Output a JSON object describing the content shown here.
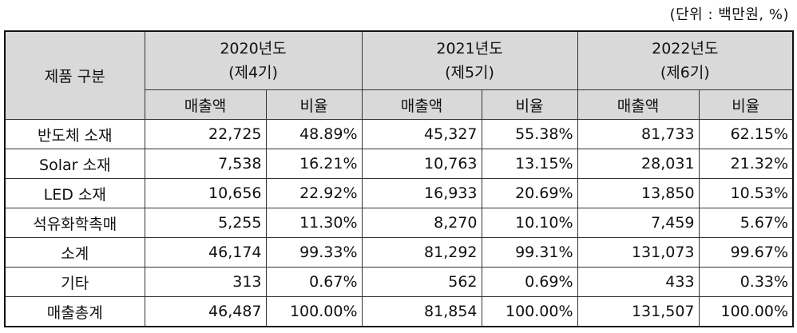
{
  "unit_label": "(단위 : 백만원, %)",
  "header": {
    "category": "제품 구분",
    "years": [
      {
        "year": "2020년도",
        "period": "(제4기)"
      },
      {
        "year": "2021년도",
        "period": "(제5기)"
      },
      {
        "year": "2022년도",
        "period": "(제6기)"
      }
    ],
    "sales_label": "매출액",
    "ratio_label": "비율"
  },
  "rows": [
    {
      "name": "반도체 소재",
      "values": [
        "22,725",
        "48.89%",
        "45,327",
        "55.38%",
        "81,733",
        "62.15%"
      ]
    },
    {
      "name": "Solar 소재",
      "values": [
        "7,538",
        "16.21%",
        "10,763",
        "13.15%",
        "28,031",
        "21.32%"
      ]
    },
    {
      "name": "LED 소재",
      "values": [
        "10,656",
        "22.92%",
        "16,933",
        "20.69%",
        "13,850",
        "10.53%"
      ]
    },
    {
      "name": "석유화학촉매",
      "values": [
        "5,255",
        "11.30%",
        "8,270",
        "10.10%",
        "7,459",
        "5.67%"
      ]
    },
    {
      "name": "소계",
      "values": [
        "46,174",
        "99.33%",
        "81,292",
        "99.31%",
        "131,073",
        "99.67%"
      ]
    },
    {
      "name": "기타",
      "values": [
        "313",
        "0.67%",
        "562",
        "0.69%",
        "433",
        "0.33%"
      ]
    },
    {
      "name": "매출총계",
      "values": [
        "46,487",
        "100.00%",
        "81,854",
        "100.00%",
        "131,507",
        "100.00%"
      ]
    }
  ]
}
